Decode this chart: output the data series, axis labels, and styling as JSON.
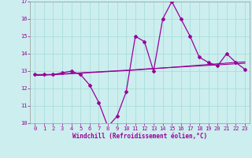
{
  "xlabel": "Windchill (Refroidissement éolien,°C)",
  "x": [
    0,
    1,
    2,
    3,
    4,
    5,
    6,
    7,
    8,
    9,
    10,
    11,
    12,
    13,
    14,
    15,
    16,
    17,
    18,
    19,
    20,
    21,
    22,
    23
  ],
  "y_main": [
    12.8,
    12.8,
    12.8,
    12.9,
    13.0,
    12.8,
    12.2,
    11.2,
    9.8,
    10.4,
    11.8,
    15.0,
    14.7,
    13.0,
    16.0,
    17.0,
    16.0,
    15.0,
    13.8,
    13.5,
    13.3,
    14.0,
    13.5,
    13.1
  ],
  "y_trend1": [
    12.75,
    12.78,
    12.81,
    12.84,
    12.87,
    12.9,
    12.93,
    12.96,
    12.99,
    13.02,
    13.05,
    13.08,
    13.12,
    13.15,
    13.18,
    13.21,
    13.24,
    13.27,
    13.3,
    13.33,
    13.36,
    13.39,
    13.42,
    13.45
  ],
  "y_trend2": [
    12.75,
    12.77,
    12.79,
    12.82,
    12.85,
    12.88,
    12.91,
    12.94,
    12.97,
    13.0,
    13.03,
    13.06,
    13.1,
    13.14,
    13.18,
    13.22,
    13.26,
    13.3,
    13.34,
    13.38,
    13.42,
    13.46,
    13.5,
    13.53
  ],
  "line_color": "#990099",
  "bg_color": "#cceeee",
  "grid_color": "#aadddd",
  "ylim": [
    10,
    17
  ],
  "yticks": [
    10,
    11,
    12,
    13,
    14,
    15,
    16,
    17
  ],
  "xticks": [
    0,
    1,
    2,
    3,
    4,
    5,
    6,
    7,
    8,
    9,
    10,
    11,
    12,
    13,
    14,
    15,
    16,
    17,
    18,
    19,
    20,
    21,
    22,
    23
  ],
  "tick_fontsize": 5.0,
  "xlabel_fontsize": 5.5
}
